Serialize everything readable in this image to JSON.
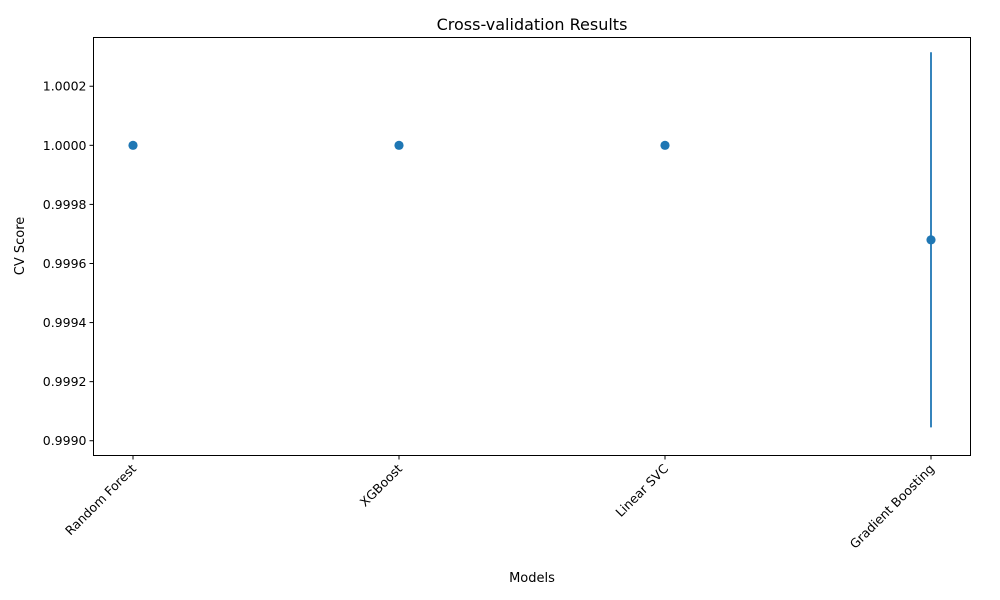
{
  "chart_data": {
    "type": "scatter",
    "title": "Cross-validation Results",
    "xlabel": "Models",
    "ylabel": "CV Score",
    "categories": [
      "Random Forest",
      "XGBoost",
      "Linear SVC",
      "Gradient Boosting"
    ],
    "series": [
      {
        "values": [
          1.0,
          1.0,
          1.0,
          0.99968
        ],
        "error": [
          0.0,
          0.0,
          0.0,
          0.000635
        ]
      }
    ],
    "ylim": [
      0.99895,
      1.000365
    ],
    "yticks": [
      0.999,
      0.9992,
      0.9994,
      0.9996,
      0.9998,
      1.0,
      1.0002
    ],
    "ytick_labels": [
      "0.9990",
      "0.9992",
      "0.9994",
      "0.9996",
      "0.9998",
      "1.0000",
      "1.0002"
    ],
    "grid": false,
    "legend": "none",
    "color": "#1f77b4"
  }
}
